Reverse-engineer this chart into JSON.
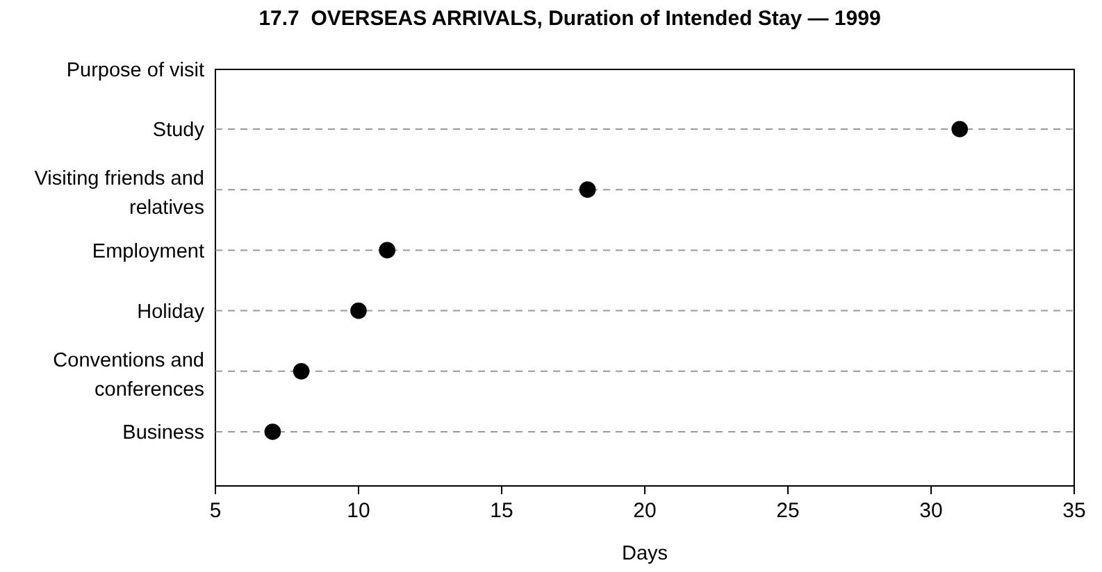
{
  "chart_data": {
    "type": "scatter",
    "title": "17.7  OVERSEAS ARRIVALS, Duration of Intended Stay — 1999",
    "xlabel": "Days",
    "ylabel": "Purpose of visit",
    "orientation": "horizontal",
    "categories": [
      "Study",
      "Visiting friends and relatives",
      "Employment",
      "Holiday",
      "Conventions and conferences",
      "Business"
    ],
    "values": [
      31,
      18,
      11,
      10,
      8,
      7
    ],
    "color": "#000000",
    "marker": "circle",
    "grid": "y",
    "line_style": "dashed",
    "xlim": [
      5,
      35
    ],
    "xticks": [
      5,
      10,
      15,
      20,
      25,
      30,
      35
    ]
  }
}
